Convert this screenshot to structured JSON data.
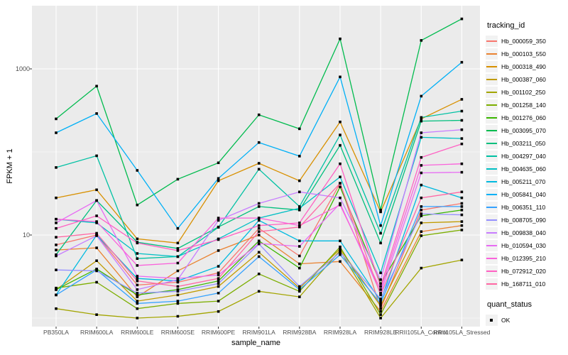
{
  "figure": {
    "y_axis_title": "FPKM + 1",
    "x_axis_title": "sample_name"
  },
  "legend": {
    "tracking_title": "tracking_id",
    "quant_title": "quant_status",
    "quant_ok_label": "OK"
  },
  "chart_data": {
    "type": "line",
    "title": "",
    "xlabel": "sample_name",
    "ylabel": "FPKM + 1",
    "y_scale": "log10",
    "y_tick_values": [
      10,
      1000
    ],
    "y_tick_labels": [
      "10",
      "1000"
    ],
    "y_minor_values": [
      1,
      100
    ],
    "ylim": [
      1,
      5800
    ],
    "grid": true,
    "legend_position": "right",
    "panel_background": "#ebebeb",
    "gridline_color": "#ffffff",
    "point_color": "#000000",
    "categories": [
      "PB350LA",
      "RRIM600LA",
      "RRIM600LE",
      "RRIM600SE",
      "RRIM600PE",
      "RRIM901LA",
      "RRIM928BA",
      "RRIM928LA",
      "RRIM928LE",
      "RRII105LA_Control",
      "RRII105LA_Stressed"
    ],
    "series": [
      {
        "name": "Hb_000059_350",
        "color": "#F8766D",
        "values": [
          7.6,
          10,
          2.5,
          2.7,
          3.5,
          12,
          5.6,
          42,
          1.3,
          20,
          24
        ]
      },
      {
        "name": "Hb_000103_550",
        "color": "#EA8331",
        "values": [
          6.6,
          7.0,
          1.8,
          3.7,
          6.5,
          10,
          4.5,
          4.8,
          1.2,
          11,
          13
        ]
      },
      {
        "name": "Hb_000318_490",
        "color": "#D89000",
        "values": [
          28,
          35,
          9,
          8,
          45,
          73,
          45,
          230,
          19,
          250,
          430
        ]
      },
      {
        "name": "Hb_000387_060",
        "color": "#C09B00",
        "values": [
          2.2,
          4.9,
          1.6,
          1.9,
          2.4,
          6.2,
          2.3,
          6.8,
          1.4,
          14,
          14.5
        ]
      },
      {
        "name": "Hb_001102_250",
        "color": "#A3A500",
        "values": [
          1.3,
          1.1,
          1.0,
          1.05,
          1.2,
          2.1,
          1.8,
          6.5,
          1.0,
          4.0,
          5.0
        ]
      },
      {
        "name": "Hb_001258_140",
        "color": "#7CAE00",
        "values": [
          2.3,
          2.7,
          1.3,
          1.5,
          1.6,
          3.4,
          2.1,
          7.2,
          1.1,
          9.8,
          11.5
        ]
      },
      {
        "name": "Hb_001276_060",
        "color": "#39B600",
        "values": [
          2.2,
          3.9,
          1.9,
          2.2,
          2.8,
          8.5,
          4.0,
          38,
          2.6,
          17,
          20
        ]
      },
      {
        "name": "Hb_003095_070",
        "color": "#00BB4E",
        "values": [
          250,
          620,
          23,
          47,
          74,
          280,
          190,
          2300,
          20,
          2200,
          4000
        ]
      },
      {
        "name": "Hb_003211_050",
        "color": "#00BF7D",
        "values": [
          5.8,
          26,
          8.2,
          6.9,
          12.5,
          22,
          20,
          120,
          8,
          235,
          240
        ]
      },
      {
        "name": "Hb_004297_040",
        "color": "#00C1A3",
        "values": [
          65,
          90,
          5.2,
          5.5,
          12.4,
          62,
          22,
          160,
          10.5,
          260,
          310
        ]
      },
      {
        "name": "Hb_004635_060",
        "color": "#00BFC4",
        "values": [
          15.5,
          14,
          6.0,
          5.5,
          9.0,
          16,
          21,
          50,
          3.5,
          150,
          145
        ]
      },
      {
        "name": "Hb_005211_070",
        "color": "#00BAE0",
        "values": [
          1.9,
          10,
          3.0,
          2.8,
          4.2,
          15,
          8.5,
          8.5,
          1.6,
          40,
          28
        ]
      },
      {
        "name": "Hb_005841_040",
        "color": "#00B0F6",
        "values": [
          170,
          290,
          60,
          12,
          48,
          130,
          89,
          800,
          13,
          470,
          1200
        ]
      },
      {
        "name": "Hb_006351_110",
        "color": "#35A2FF",
        "values": [
          1.9,
          3.8,
          1.5,
          1.6,
          2.0,
          5.5,
          2.2,
          5.8,
          1.5,
          22,
          22
        ]
      },
      {
        "name": "Hb_008705_090",
        "color": "#9590FF",
        "values": [
          3.8,
          3.7,
          2.0,
          2.1,
          2.6,
          7.8,
          2.4,
          6.2,
          1.7,
          18,
          17.5
        ]
      },
      {
        "name": "Hb_009838_040",
        "color": "#C77CFF",
        "values": [
          5.6,
          9.8,
          2.2,
          2.9,
          15,
          24,
          33,
          28,
          2.9,
          170,
          185
        ]
      },
      {
        "name": "Hb_010594_030",
        "color": "#E76BF3",
        "values": [
          14,
          26,
          3.2,
          3.0,
          3.3,
          7.9,
          7.3,
          24,
          2.0,
          56,
          57
        ]
      },
      {
        "name": "Hb_012395_210",
        "color": "#FA62DB",
        "values": [
          15.5,
          14.5,
          4.3,
          4.6,
          16,
          16,
          13,
          23,
          2.2,
          69,
          72
        ]
      },
      {
        "name": "Hb_072912_020",
        "color": "#FF61C3",
        "values": [
          12,
          17,
          8.0,
          6.5,
          8.8,
          13,
          14,
          72,
          2.4,
          86,
          125
        ]
      },
      {
        "name": "Hb_168711_010",
        "color": "#FF67A4",
        "values": [
          9.4,
          10.5,
          2.8,
          2.4,
          3.0,
          11,
          12.5,
          42,
          1.9,
          28,
          33
        ]
      }
    ]
  }
}
